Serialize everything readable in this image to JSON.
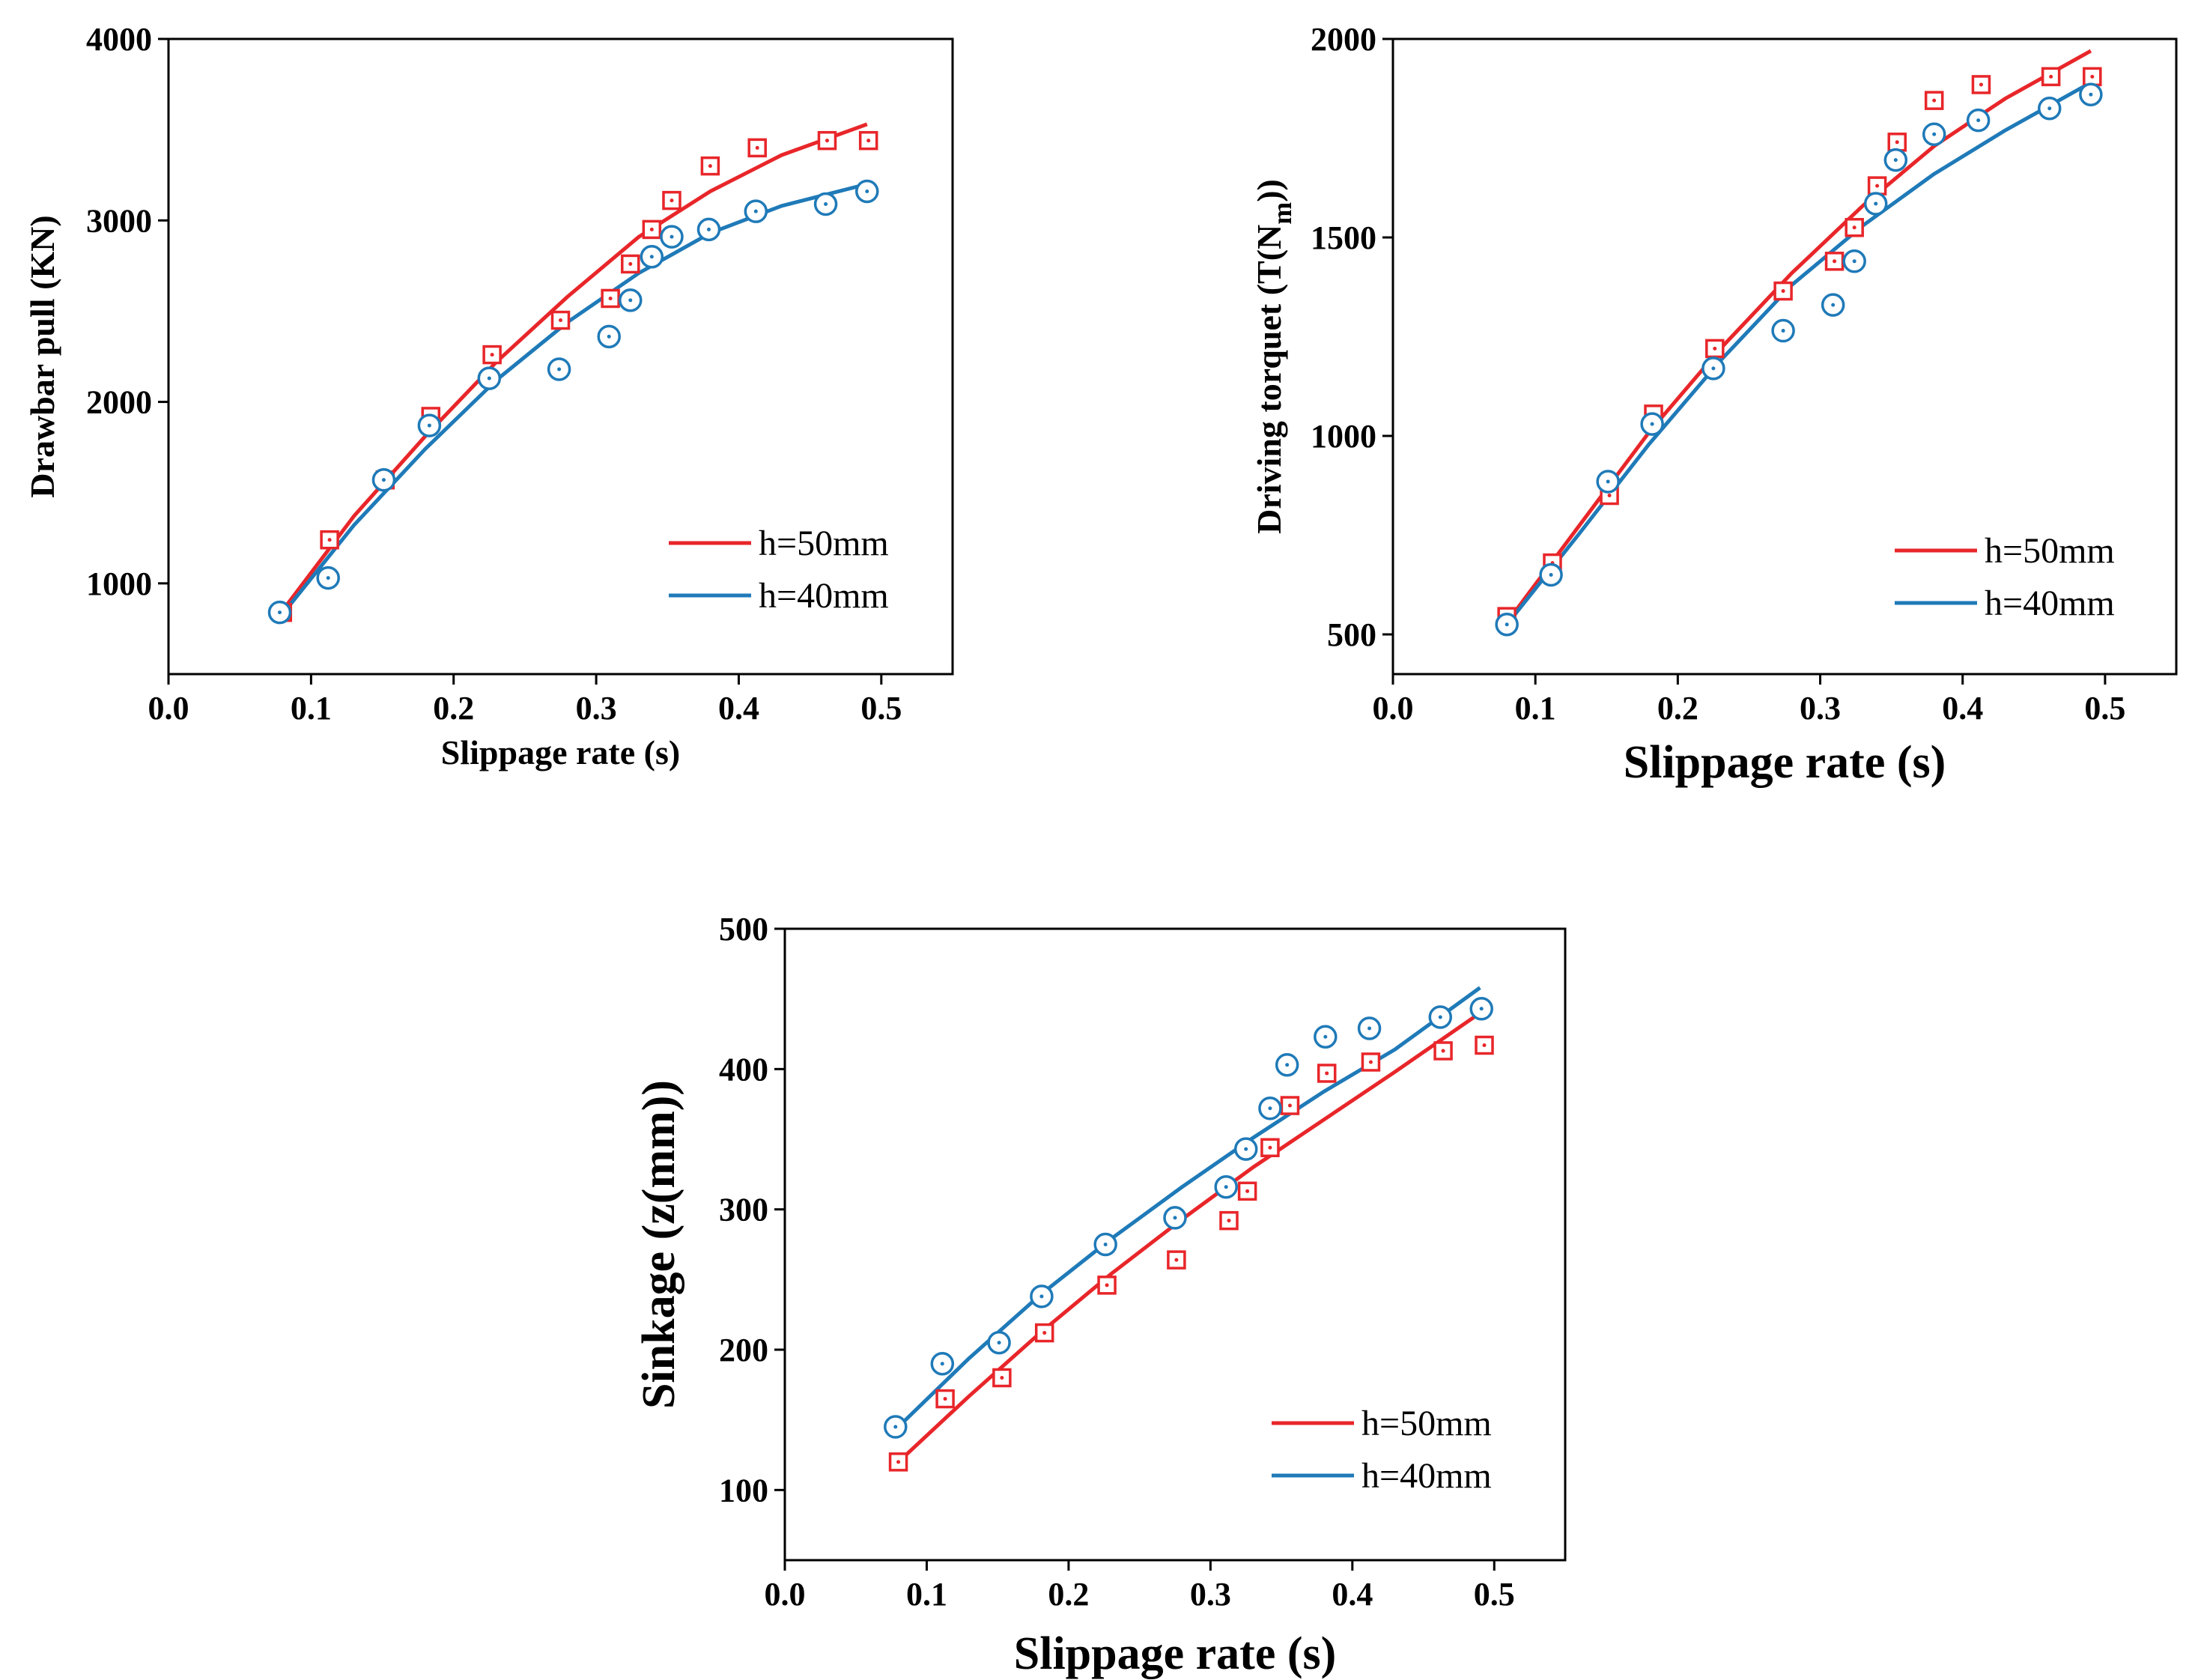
{
  "colors": {
    "red": "#e8262a",
    "blue": "#1f7ab8",
    "axis": "#000000"
  },
  "chart_data": [
    {
      "type": "scatter",
      "xlabel": "Slippage rate (s)",
      "ylabel": "Drawbar pull (KN)",
      "xlim": [
        0.0,
        0.55
      ],
      "ylim": [
        500,
        4000
      ],
      "x_ticks": [
        "0.0",
        "0.1",
        "0.2",
        "0.3",
        "0.4",
        "0.5"
      ],
      "y_ticks": [
        "1000",
        "2000",
        "3000",
        "4000"
      ],
      "legend_position": "lower-right",
      "series": [
        {
          "name": "h=50mm",
          "color": "#e8262a",
          "marker": "square",
          "x": [
            0.08,
            0.113,
            0.152,
            0.184,
            0.227,
            0.275,
            0.31,
            0.324,
            0.339,
            0.353,
            0.38,
            0.413,
            0.462,
            0.491
          ],
          "y": [
            840,
            1240,
            1570,
            1920,
            2260,
            2450,
            2570,
            2760,
            2950,
            3110,
            3300,
            3400,
            3440,
            3440
          ],
          "fit_x": [
            0.08,
            0.13,
            0.18,
            0.23,
            0.28,
            0.33,
            0.38,
            0.43,
            0.49
          ],
          "fit_y": [
            850,
            1370,
            1810,
            2220,
            2580,
            2910,
            3160,
            3360,
            3530
          ]
        },
        {
          "name": "h=40mm",
          "color": "#1f7ab8",
          "marker": "circle",
          "x": [
            0.078,
            0.112,
            0.151,
            0.183,
            0.225,
            0.274,
            0.309,
            0.324,
            0.339,
            0.353,
            0.379,
            0.412,
            0.461,
            0.49
          ],
          "y": [
            840,
            1030,
            1570,
            1870,
            2130,
            2180,
            2360,
            2560,
            2800,
            2910,
            2950,
            3050,
            3090,
            3160
          ],
          "fit_x": [
            0.08,
            0.13,
            0.18,
            0.23,
            0.28,
            0.33,
            0.38,
            0.43,
            0.49
          ],
          "fit_y": [
            830,
            1320,
            1740,
            2120,
            2440,
            2710,
            2930,
            3080,
            3200
          ]
        }
      ]
    },
    {
      "type": "scatter",
      "xlabel": "Slippage rate (s)",
      "ylabel": "Driving torquet (T(Nm))",
      "ylabel_main": "Driving torquet (T(N",
      "ylabel_sub": "m",
      "ylabel_tail": "))",
      "xlim": [
        0.0,
        0.55
      ],
      "ylim": [
        400,
        2000
      ],
      "x_ticks": [
        "0.0",
        "0.1",
        "0.2",
        "0.3",
        "0.4",
        "0.5"
      ],
      "y_ticks": [
        "500",
        "1000",
        "1500",
        "2000"
      ],
      "legend_position": "lower-right",
      "series": [
        {
          "name": "h=50mm",
          "color": "#e8262a",
          "marker": "square",
          "x": [
            0.08,
            0.112,
            0.152,
            0.183,
            0.226,
            0.274,
            0.31,
            0.324,
            0.34,
            0.354,
            0.38,
            0.413,
            0.462,
            0.491
          ],
          "y": [
            545,
            680,
            850,
            1055,
            1220,
            1365,
            1440,
            1525,
            1630,
            1740,
            1845,
            1885,
            1905,
            1905
          ],
          "fit_x": [
            0.08,
            0.13,
            0.18,
            0.23,
            0.28,
            0.33,
            0.38,
            0.43,
            0.49
          ],
          "fit_y": [
            530,
            770,
            1010,
            1220,
            1410,
            1580,
            1730,
            1850,
            1970
          ]
        },
        {
          "name": "h=40mm",
          "color": "#1f7ab8",
          "marker": "circle",
          "x": [
            0.08,
            0.111,
            0.151,
            0.182,
            0.225,
            0.274,
            0.309,
            0.324,
            0.339,
            0.353,
            0.38,
            0.411,
            0.461,
            0.49
          ],
          "y": [
            525,
            650,
            885,
            1030,
            1170,
            1265,
            1330,
            1440,
            1585,
            1695,
            1760,
            1795,
            1825,
            1860
          ],
          "fit_x": [
            0.08,
            0.13,
            0.18,
            0.23,
            0.28,
            0.33,
            0.38,
            0.43,
            0.49
          ],
          "fit_y": [
            525,
            750,
            980,
            1190,
            1380,
            1530,
            1660,
            1770,
            1890
          ]
        }
      ]
    },
    {
      "type": "scatter",
      "xlabel": "Slippage rate (s)",
      "ylabel": "Sinkage (z(mm))",
      "xlim": [
        0.0,
        0.55
      ],
      "ylim": [
        50,
        500
      ],
      "x_ticks": [
        "0.0",
        "0.1",
        "0.2",
        "0.3",
        "0.4",
        "0.5"
      ],
      "y_ticks": [
        "100",
        "200",
        "300",
        "400",
        "500"
      ],
      "legend_position": "lower-right",
      "series": [
        {
          "name": "h=50mm",
          "color": "#e8262a",
          "marker": "square",
          "x": [
            0.08,
            0.113,
            0.153,
            0.183,
            0.227,
            0.276,
            0.313,
            0.326,
            0.342,
            0.356,
            0.382,
            0.413,
            0.464,
            0.493
          ],
          "y": [
            120,
            165,
            180,
            212,
            246,
            264,
            292,
            313,
            344,
            374,
            397,
            405,
            413,
            417
          ],
          "fit_x": [
            0.08,
            0.13,
            0.18,
            0.23,
            0.28,
            0.33,
            0.38,
            0.43,
            0.49
          ],
          "fit_y": [
            120,
            167,
            212,
            254,
            293,
            330,
            364,
            398,
            440
          ]
        },
        {
          "name": "h=40mm",
          "color": "#1f7ab8",
          "marker": "circle",
          "x": [
            0.078,
            0.111,
            0.151,
            0.181,
            0.226,
            0.275,
            0.311,
            0.325,
            0.342,
            0.354,
            0.381,
            0.412,
            0.462,
            0.491
          ],
          "y": [
            145,
            190,
            205,
            238,
            275,
            294,
            316,
            343,
            372,
            403,
            423,
            429,
            437,
            443
          ],
          "fit_x": [
            0.08,
            0.13,
            0.18,
            0.23,
            0.28,
            0.33,
            0.38,
            0.43,
            0.49
          ],
          "fit_y": [
            145,
            194,
            239,
            279,
            316,
            351,
            384,
            414,
            458
          ]
        }
      ]
    }
  ]
}
